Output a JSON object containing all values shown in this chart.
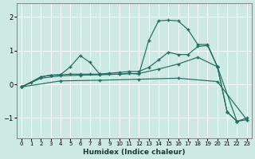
{
  "xlabel": "Humidex (Indice chaleur)",
  "background_color": "#cce9e4",
  "line_color": "#1e6e5e",
  "grid_color": "#ffffff",
  "xlim": [
    -0.5,
    23.5
  ],
  "ylim": [
    -1.6,
    2.4
  ],
  "xticks": [
    0,
    1,
    2,
    3,
    4,
    5,
    6,
    7,
    8,
    9,
    10,
    11,
    12,
    13,
    14,
    15,
    16,
    17,
    18,
    19,
    20,
    21,
    22,
    23
  ],
  "yticks": [
    -1,
    0,
    1,
    2
  ],
  "series1": [
    [
      0,
      -0.08
    ],
    [
      1,
      0.05
    ],
    [
      2,
      0.22
    ],
    [
      3,
      0.27
    ],
    [
      4,
      0.28
    ],
    [
      5,
      0.52
    ],
    [
      6,
      0.85
    ],
    [
      7,
      0.65
    ],
    [
      8,
      0.3
    ],
    [
      9,
      0.3
    ],
    [
      10,
      0.3
    ],
    [
      11,
      0.33
    ],
    [
      12,
      0.3
    ],
    [
      13,
      1.3
    ],
    [
      14,
      1.88
    ],
    [
      15,
      1.9
    ],
    [
      16,
      1.88
    ],
    [
      17,
      1.62
    ],
    [
      18,
      1.18
    ],
    [
      19,
      1.18
    ],
    [
      20,
      0.52
    ],
    [
      21,
      -0.82
    ],
    [
      22,
      -1.1
    ],
    [
      23,
      -1.05
    ]
  ],
  "series2": [
    [
      0,
      -0.08
    ],
    [
      2,
      0.22
    ],
    [
      3,
      0.27
    ],
    [
      4,
      0.28
    ],
    [
      5,
      0.3
    ],
    [
      6,
      0.3
    ],
    [
      7,
      0.3
    ],
    [
      8,
      0.3
    ],
    [
      9,
      0.33
    ],
    [
      10,
      0.35
    ],
    [
      11,
      0.38
    ],
    [
      12,
      0.38
    ],
    [
      13,
      0.5
    ],
    [
      14,
      0.72
    ],
    [
      15,
      0.95
    ],
    [
      16,
      0.88
    ],
    [
      17,
      0.88
    ],
    [
      18,
      1.12
    ],
    [
      19,
      1.15
    ],
    [
      20,
      0.52
    ],
    [
      21,
      -0.82
    ],
    [
      22,
      -1.1
    ],
    [
      23,
      -1.0
    ]
  ],
  "series3": [
    [
      0,
      -0.08
    ],
    [
      2,
      0.18
    ],
    [
      4,
      0.25
    ],
    [
      6,
      0.27
    ],
    [
      8,
      0.28
    ],
    [
      10,
      0.3
    ],
    [
      12,
      0.32
    ],
    [
      14,
      0.45
    ],
    [
      16,
      0.6
    ],
    [
      18,
      0.8
    ],
    [
      20,
      0.52
    ],
    [
      22,
      -1.1
    ]
  ],
  "series4": [
    [
      0,
      -0.08
    ],
    [
      4,
      0.1
    ],
    [
      8,
      0.12
    ],
    [
      12,
      0.15
    ],
    [
      16,
      0.18
    ],
    [
      20,
      0.08
    ],
    [
      23,
      -1.05
    ]
  ]
}
